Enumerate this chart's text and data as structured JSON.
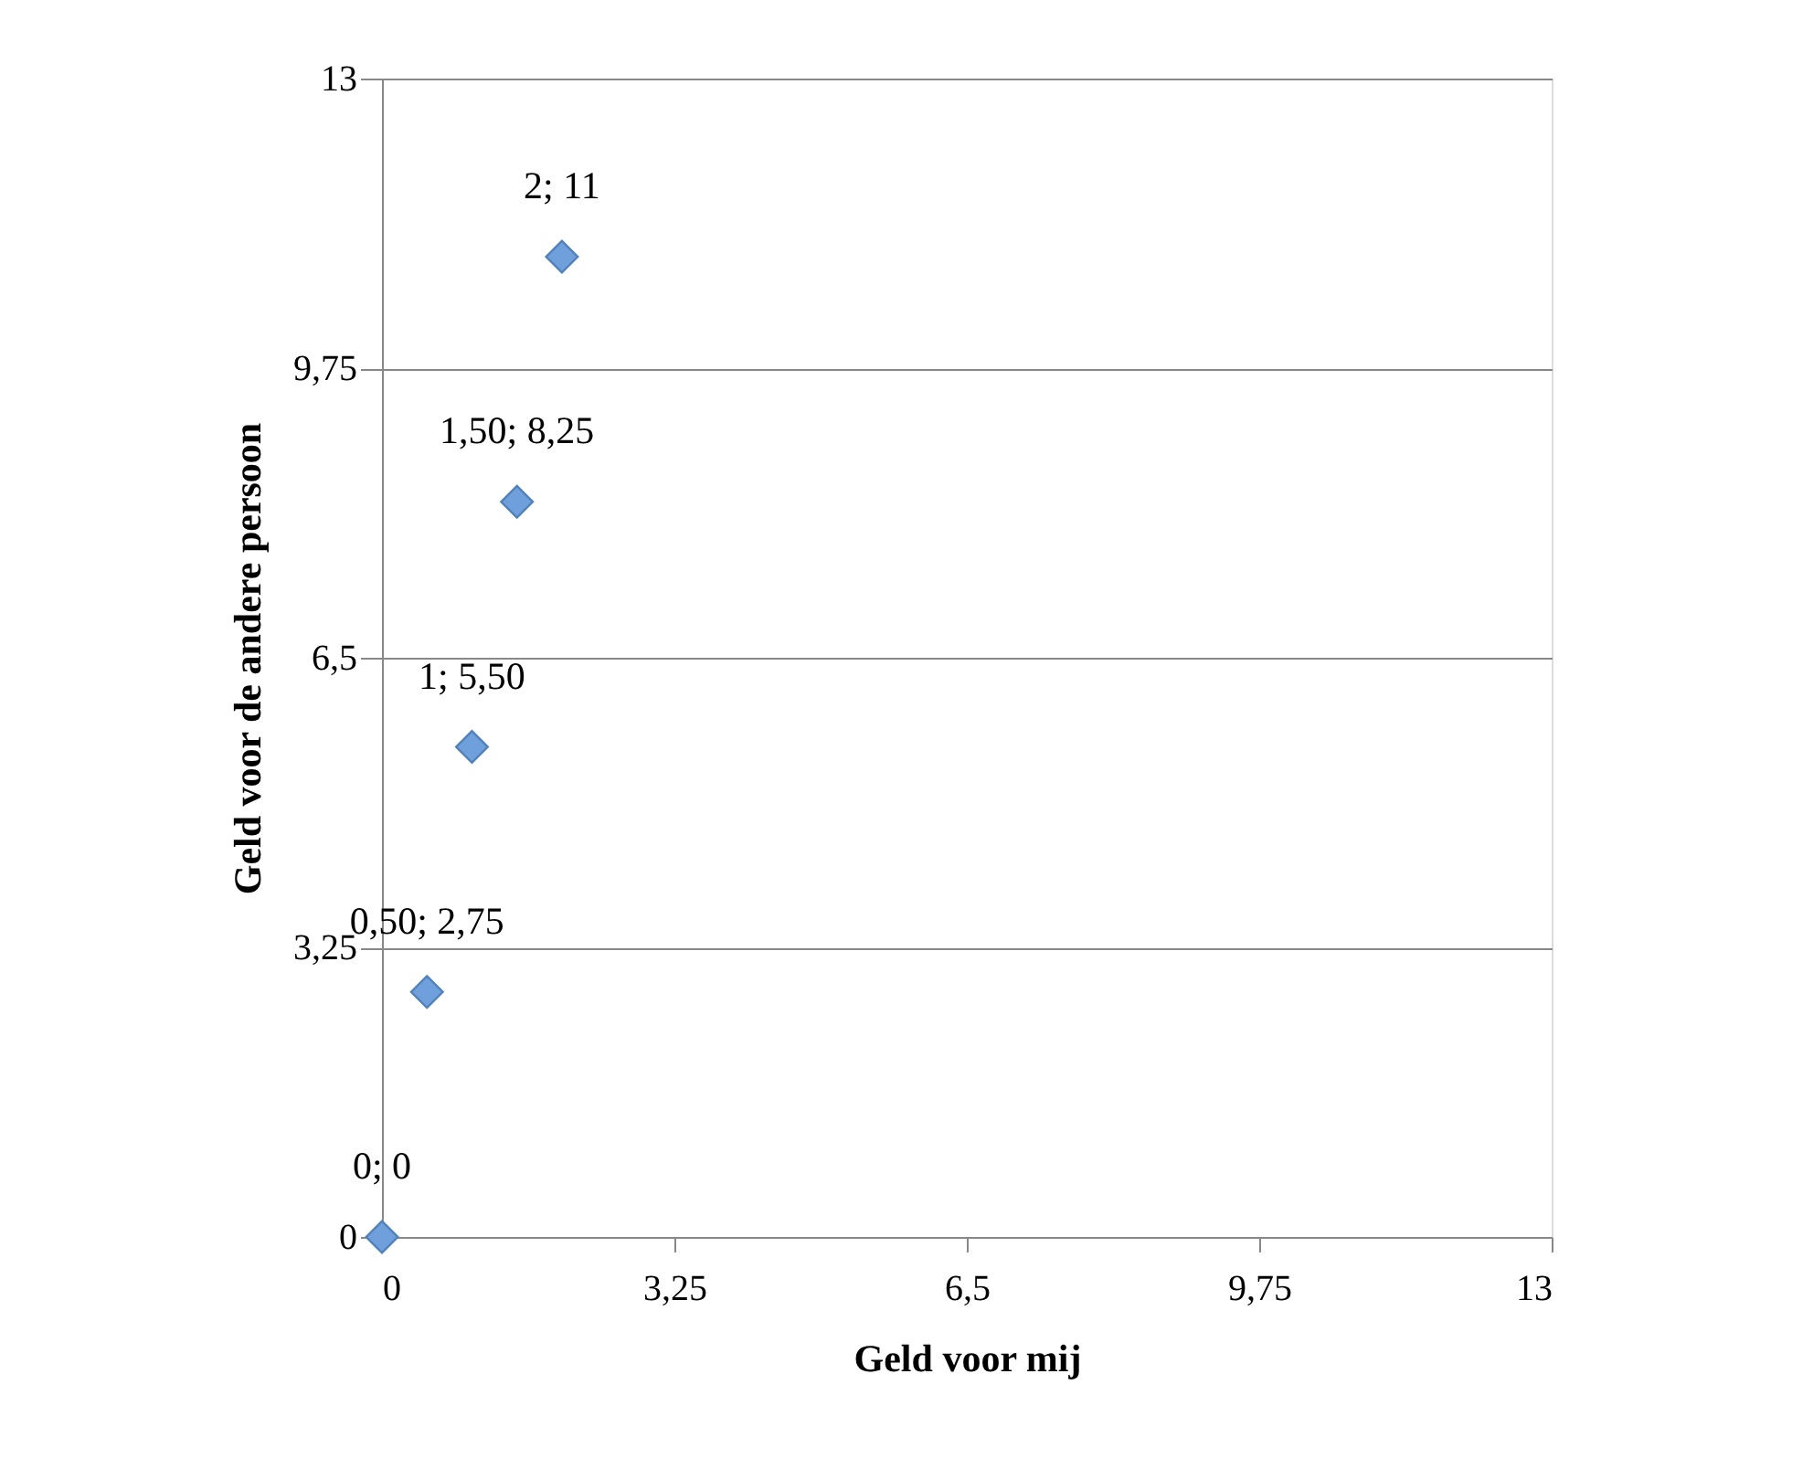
{
  "chart_data": {
    "type": "scatter",
    "xlabel": "Geld voor mij",
    "ylabel": "Geld voor de andere persoon",
    "x": [
      0,
      0.5,
      1,
      1.5,
      2
    ],
    "values": [
      0,
      2.75,
      5.5,
      8.25,
      11
    ],
    "value_labels": [
      "0; 0",
      "0,50; 2,75",
      "1; 5,50",
      "1,50; 8,25",
      "2; 11"
    ],
    "color": "#6fa0dc",
    "marker": "diamond",
    "xlim": [
      0,
      13
    ],
    "ylim": [
      0,
      13
    ],
    "xticks": [
      0,
      {
        "value": 3.25,
        "label": "3,25"
      },
      {
        "value": 6.5,
        "label": "6,5"
      },
      {
        "value": 9.75,
        "label": "9,75"
      },
      13
    ],
    "yticks": [
      0,
      {
        "value": 3.25,
        "label": "3,25"
      },
      {
        "value": 6.5,
        "label": "6,5"
      },
      {
        "value": 9.75,
        "label": "9,75"
      },
      13
    ],
    "grid": "y"
  }
}
